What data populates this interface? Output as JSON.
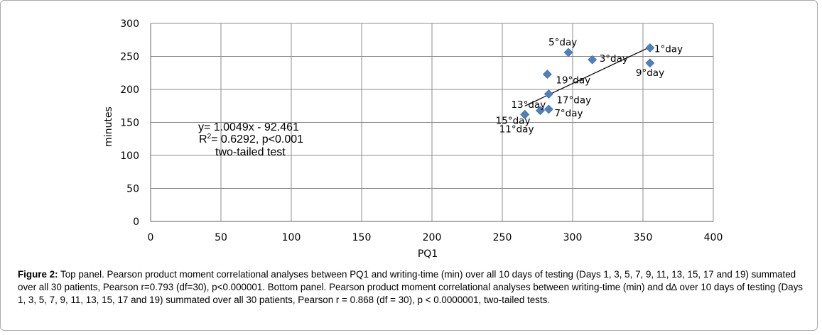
{
  "chart_data": {
    "type": "scatter",
    "xlabel": "PQ1",
    "ylabel": "minutes",
    "xlim": [
      0,
      400
    ],
    "ylim": [
      0,
      300
    ],
    "x_ticks": [
      "0",
      "50",
      "100",
      "150",
      "200",
      "250",
      "300",
      "350",
      "400"
    ],
    "y_ticks": [
      "0",
      "50",
      "100",
      "150",
      "200",
      "250",
      "300"
    ],
    "grid": true,
    "marker_color": "#4f81bd",
    "points": [
      {
        "label": "1°day",
        "x": 355,
        "y": 263
      },
      {
        "label": "3°day",
        "x": 314,
        "y": 245
      },
      {
        "label": "5°day",
        "x": 297,
        "y": 256
      },
      {
        "label": "9°day",
        "x": 355,
        "y": 240
      },
      {
        "label": "19°day",
        "x": 282,
        "y": 223
      },
      {
        "label": "17°day",
        "x": 283,
        "y": 193
      },
      {
        "label": "7°day",
        "x": 283,
        "y": 170
      },
      {
        "label": "13°day",
        "x": 277,
        "y": 168
      },
      {
        "label": "15°day",
        "x": 266,
        "y": 162
      },
      {
        "label": "11°day",
        "x": 266,
        "y": 162
      }
    ],
    "trendline": {
      "slope": 1.0049,
      "intercept": -92.461,
      "x_range": [
        266,
        356
      ],
      "color": "#000000"
    },
    "annotation": {
      "line1": "y= 1.0049x - 92.461",
      "line2_prefix": "R",
      "line2_sup": "2",
      "line2_suffix": "= 0.6292, p<0.001",
      "line3": "two-tailed test"
    }
  },
  "caption": {
    "label": "Figure 2:",
    "text": " Top panel. Pearson product moment correlational analyses between PQ1 and writing-time (min) over all 10 days of testing (Days 1, 3, 5, 7, 9, 11, 13, 15, 17 and 19) summated over all 30 patients, Pearson r=0.793 (df=30), p<0.000001. Bottom panel. Pearson product moment correlational analyses between writing-time (min) and d∆ over 10 days of testing (Days 1, 3, 5, 7, 9, 11, 13, 15, 17 and 19) summated over all 30 patients, Pearson r = 0.868 (df = 30), p < 0.0000001, two-tailed tests."
  }
}
